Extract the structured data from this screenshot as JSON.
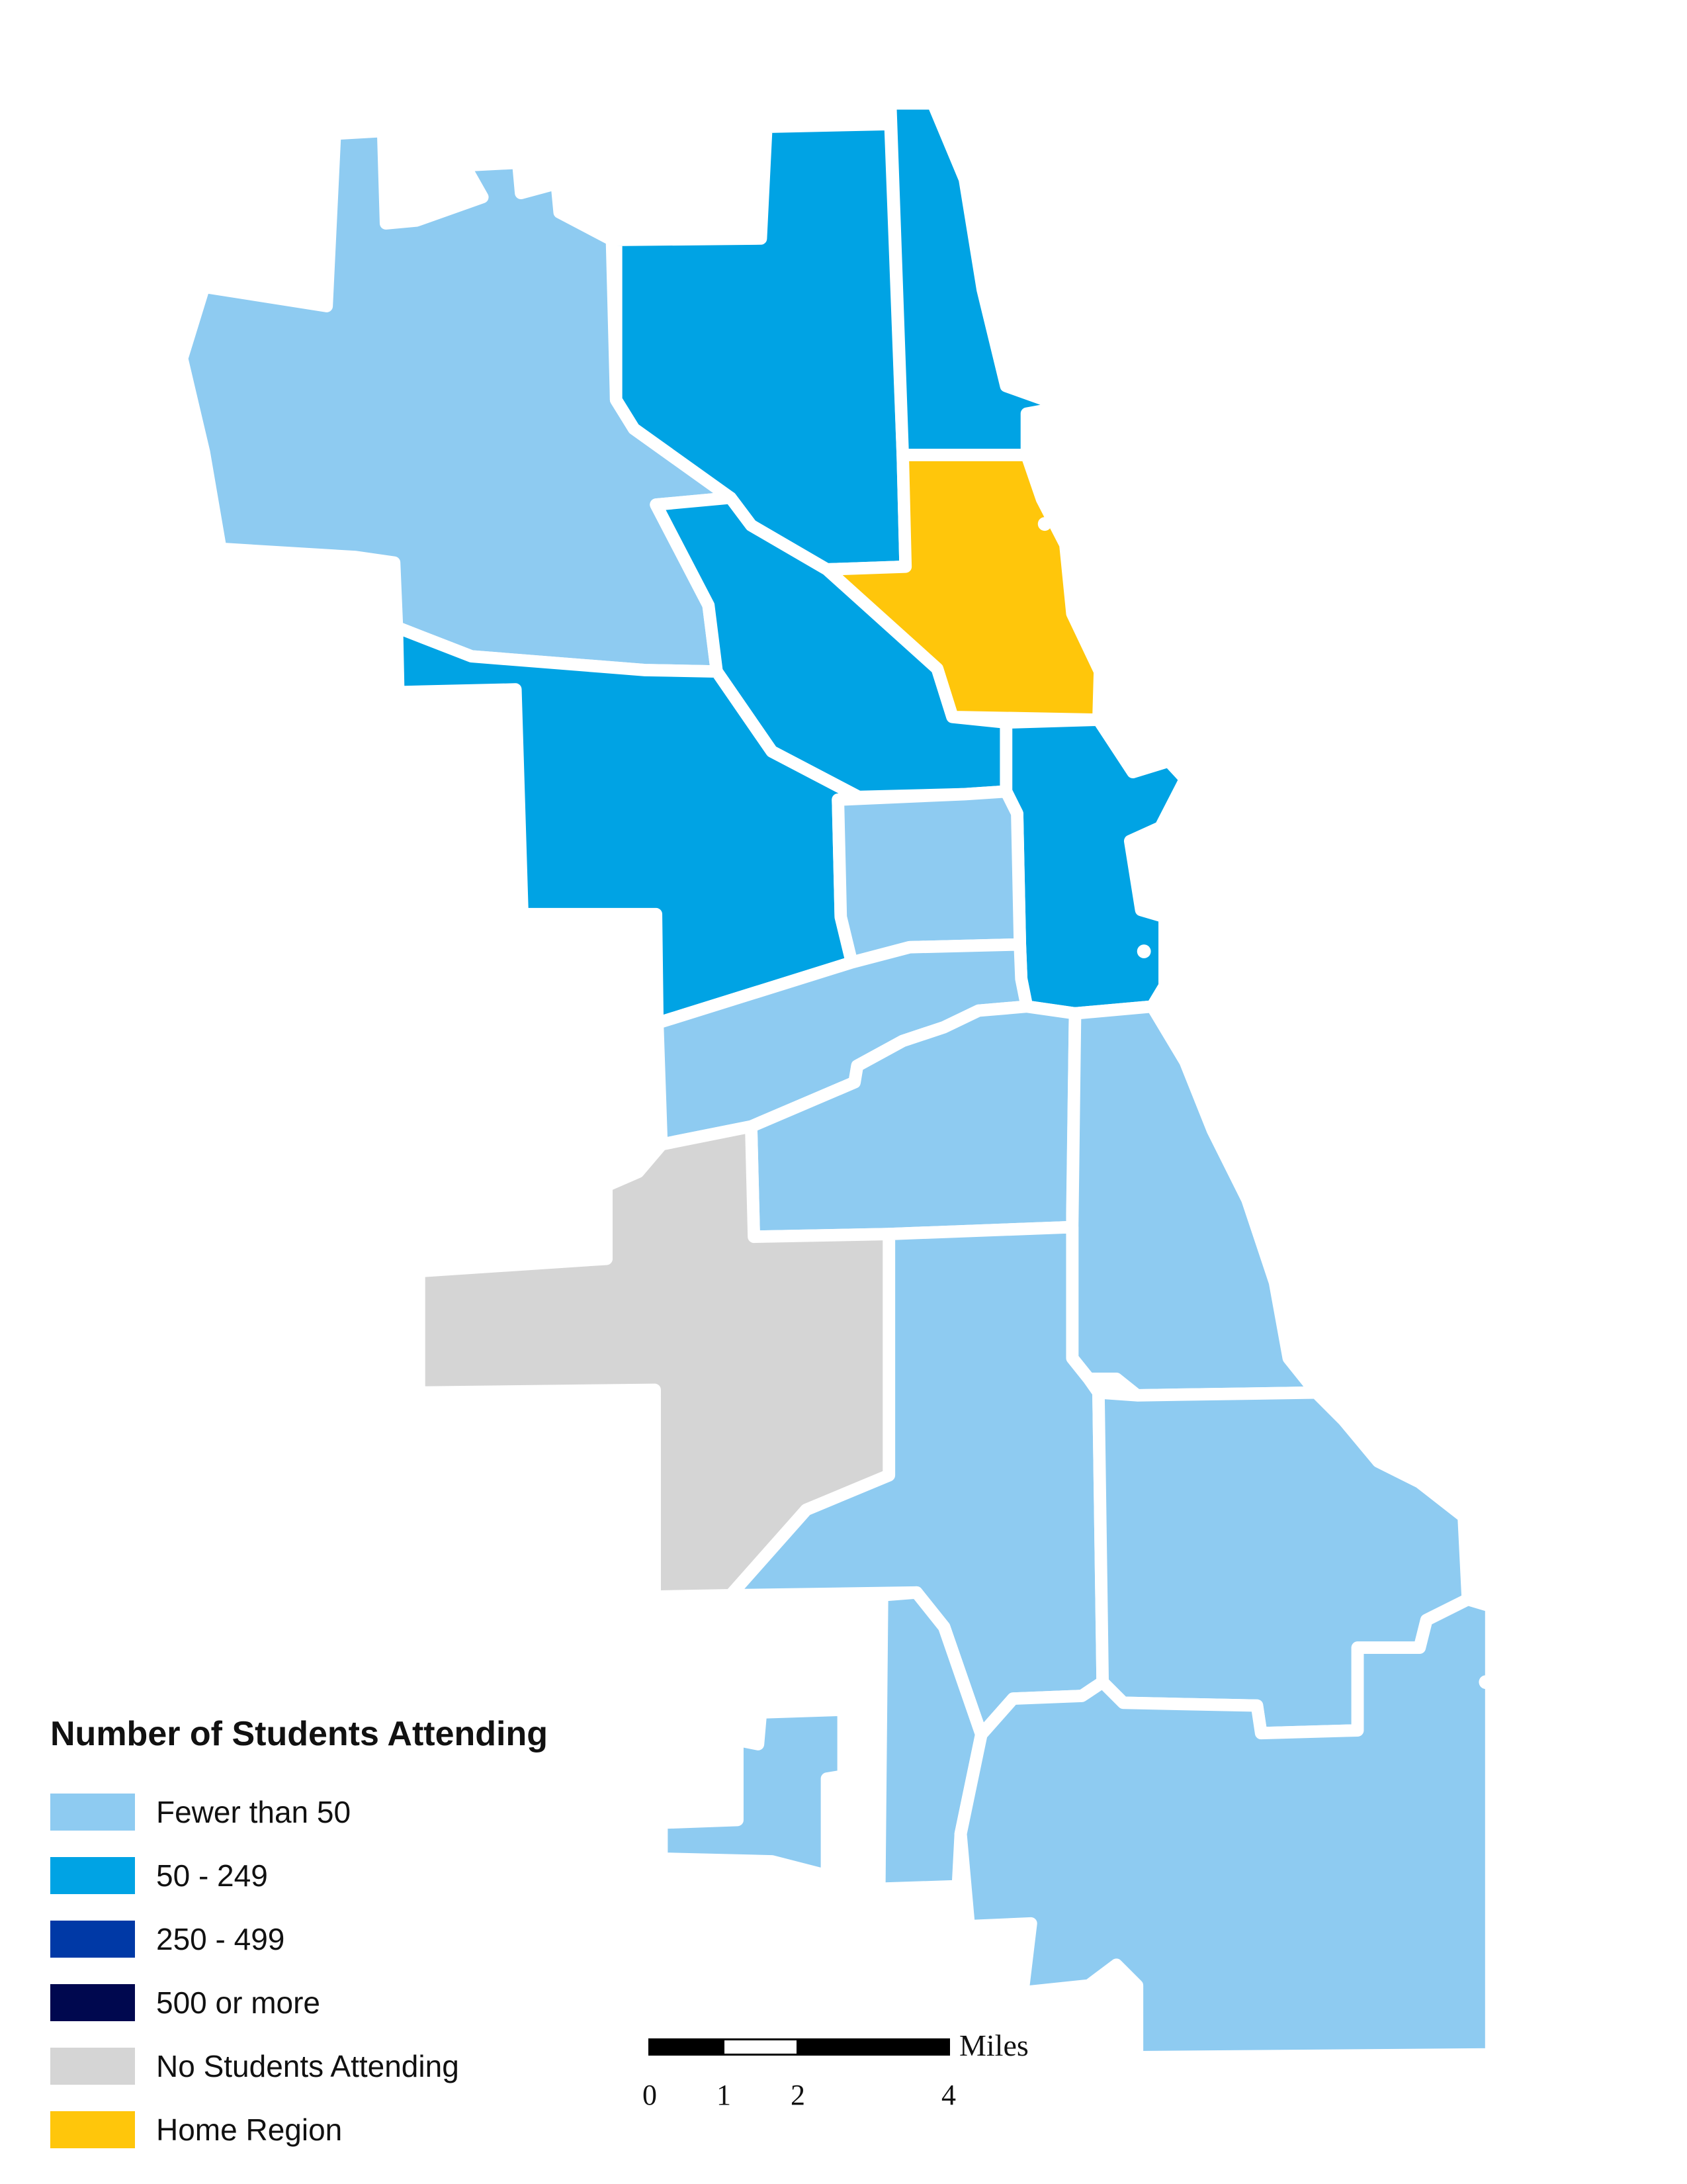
{
  "colors": {
    "fewer_than_50": "#8ecbf1",
    "c50_249": "#00a3e4",
    "c250_499": "#0039a6",
    "c500_plus": "#00084f",
    "no_students": "#d5d5d5",
    "home_region": "#ffc60b",
    "border": "#ffffff"
  },
  "legend": {
    "title": "Number of Students Attending",
    "items": [
      {
        "label": "Fewer than 50",
        "color": "#8ecbf1"
      },
      {
        "label": "50 - 249",
        "color": "#00a3e4"
      },
      {
        "label": "250 - 499",
        "color": "#0039a6"
      },
      {
        "label": "500 or more",
        "color": "#00084f"
      },
      {
        "label": "No Students Attending",
        "color": "#d5d5d5"
      },
      {
        "label": "Home Region",
        "color": "#ffc60b"
      }
    ]
  },
  "scale_bar": {
    "unit": "Miles",
    "ticks": [
      "0",
      "1",
      "2",
      "4"
    ]
  },
  "regions": [
    {
      "id": "far-northwest",
      "category": "Fewer than 50"
    },
    {
      "id": "north-central",
      "category": "50 - 249"
    },
    {
      "id": "far-north-lakefront",
      "category": "50 - 249"
    },
    {
      "id": "north-lakefront-home",
      "category": "Home Region"
    },
    {
      "id": "northwest-diagonal",
      "category": "50 - 249"
    },
    {
      "id": "west-side",
      "category": "50 - 249"
    },
    {
      "id": "near-north-lakefront",
      "category": "50 - 249"
    },
    {
      "id": "near-west",
      "category": "Fewer than 50"
    },
    {
      "id": "southwest-band",
      "category": "Fewer than 50"
    },
    {
      "id": "south-central",
      "category": "Fewer than 50"
    },
    {
      "id": "south-lakefront",
      "category": "Fewer than 50"
    },
    {
      "id": "far-southwest",
      "category": "No Students Attending"
    },
    {
      "id": "south-middle",
      "category": "Fewer than 50"
    },
    {
      "id": "far-south-east",
      "category": "Fewer than 50"
    },
    {
      "id": "far-south-southwest",
      "category": "Fewer than 50"
    },
    {
      "id": "far-south",
      "category": "Fewer than 50"
    }
  ]
}
